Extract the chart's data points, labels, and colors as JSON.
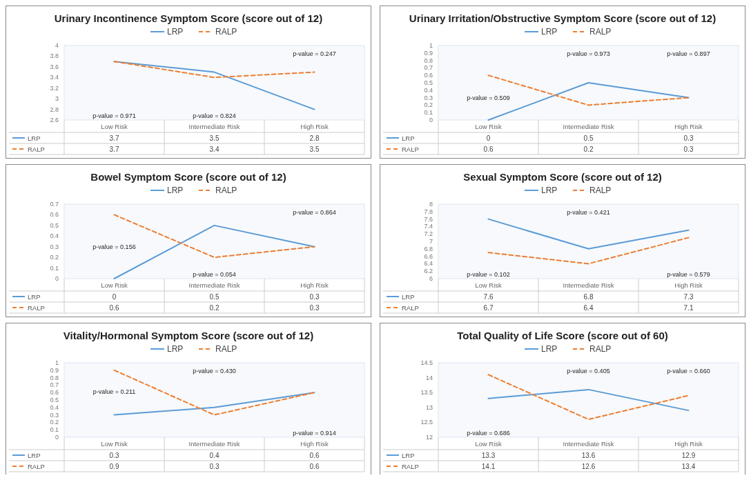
{
  "chart_data": [
    {
      "type": "line",
      "title": "Urinary Incontinence Symptom Score (score out of 12)",
      "categories": [
        "Low Risk",
        "Intermediate Risk",
        "High Risk"
      ],
      "series": [
        {
          "name": "LRP",
          "color": "#5b9bd5",
          "line_style": "solid",
          "values": [
            3.7,
            3.5,
            2.8
          ]
        },
        {
          "name": "RALP",
          "color": "#ed7d31",
          "line_style": "dashed",
          "values": [
            3.7,
            3.4,
            3.5
          ]
        }
      ],
      "ylim": [
        2.6,
        4
      ],
      "yticks": [
        2.6,
        2.8,
        3,
        3.2,
        3.4,
        3.6,
        3.8,
        4
      ],
      "legend": "top",
      "data_labels": true,
      "grid": false,
      "marker": "none",
      "annotations": [
        "p-value = 0.971",
        "p-value = 0.824",
        "p-value = 0.247"
      ]
    },
    {
      "type": "line",
      "title": "Urinary Irritation/Obstructive Symptom Score (score out of 12)",
      "categories": [
        "Low Risk",
        "Intermediate Risk",
        "High Risk"
      ],
      "series": [
        {
          "name": "LRP",
          "color": "#5b9bd5",
          "line_style": "solid",
          "values": [
            0,
            0.5,
            0.3
          ]
        },
        {
          "name": "RALP",
          "color": "#ed7d31",
          "line_style": "dashed",
          "values": [
            0.6,
            0.2,
            0.3
          ]
        }
      ],
      "ylim": [
        0,
        1
      ],
      "yticks": [
        0,
        0.1,
        0.2,
        0.3,
        0.4,
        0.5,
        0.6,
        0.7,
        0.8,
        0.9,
        1
      ],
      "legend": "top",
      "data_labels": true,
      "grid": false,
      "marker": "none",
      "annotations": [
        "p-value = 0.509",
        "p-value = 0.973",
        "p-value = 0.897"
      ]
    },
    {
      "type": "line",
      "title": "Bowel Symptom Score (score out of 12)",
      "categories": [
        "Low Risk",
        "Intermediate Risk",
        "High Risk"
      ],
      "series": [
        {
          "name": "LRP",
          "color": "#5b9bd5",
          "line_style": "solid",
          "values": [
            0,
            0.5,
            0.3
          ]
        },
        {
          "name": "RALP",
          "color": "#ed7d31",
          "line_style": "dashed",
          "values": [
            0.6,
            0.2,
            0.3
          ]
        }
      ],
      "ylim": [
        0,
        0.7
      ],
      "yticks": [
        0,
        0.1,
        0.2,
        0.3,
        0.4,
        0.5,
        0.6,
        0.7
      ],
      "legend": "top",
      "data_labels": true,
      "grid": false,
      "marker": "none",
      "annotations": [
        "p-value = 0.156",
        "p-value = 0.054",
        "p-value = 0.864"
      ]
    },
    {
      "type": "line",
      "title": "Sexual Symptom Score (score out of 12)",
      "categories": [
        "Low Risk",
        "Intermediate Risk",
        "High Risk"
      ],
      "series": [
        {
          "name": "LRP",
          "color": "#5b9bd5",
          "line_style": "solid",
          "values": [
            7.6,
            6.8,
            7.3
          ]
        },
        {
          "name": "RALP",
          "color": "#ed7d31",
          "line_style": "dashed",
          "values": [
            6.7,
            6.4,
            7.1
          ]
        }
      ],
      "ylim": [
        6,
        8
      ],
      "yticks": [
        6,
        6.2,
        6.4,
        6.6,
        6.8,
        7,
        7.2,
        7.4,
        7.6,
        7.8,
        8
      ],
      "legend": "top",
      "data_labels": true,
      "grid": false,
      "marker": "none",
      "annotations": [
        "p-value = 0.102",
        "p-value = 0.421",
        "p-value = 0.579"
      ]
    },
    {
      "type": "line",
      "title": "Vitality/Hormonal Symptom Score (score out of 12)",
      "categories": [
        "Low Risk",
        "Intermediate Risk",
        "High Risk"
      ],
      "series": [
        {
          "name": "LRP",
          "color": "#5b9bd5",
          "line_style": "solid",
          "values": [
            0.3,
            0.4,
            0.6
          ]
        },
        {
          "name": "RALP",
          "color": "#ed7d31",
          "line_style": "dashed",
          "values": [
            0.9,
            0.3,
            0.6
          ]
        }
      ],
      "ylim": [
        0,
        1
      ],
      "yticks": [
        0,
        0.1,
        0.2,
        0.3,
        0.4,
        0.5,
        0.6,
        0.7,
        0.8,
        0.9,
        1
      ],
      "legend": "top",
      "data_labels": true,
      "grid": false,
      "marker": "none",
      "annotations": [
        "p-value = 0.211",
        "p-value = 0.430",
        "p-value = 0.914"
      ]
    },
    {
      "type": "line",
      "title": "Total Quality of Life Score (score out of 60)",
      "categories": [
        "Low Risk",
        "Intermediate Risk",
        "High Risk"
      ],
      "series": [
        {
          "name": "LRP",
          "color": "#5b9bd5",
          "line_style": "solid",
          "values": [
            13.3,
            13.6,
            12.9
          ]
        },
        {
          "name": "RALP",
          "color": "#ed7d31",
          "line_style": "dashed",
          "values": [
            14.1,
            12.6,
            13.4
          ]
        }
      ],
      "ylim": [
        12,
        14.5
      ],
      "yticks": [
        12,
        12.5,
        13,
        13.5,
        14,
        14.5
      ],
      "legend": "top",
      "data_labels": true,
      "grid": false,
      "marker": "none",
      "annotations": [
        "p-value = 0.686",
        "p-value = 0.405",
        "p-value = 0.660"
      ]
    }
  ]
}
